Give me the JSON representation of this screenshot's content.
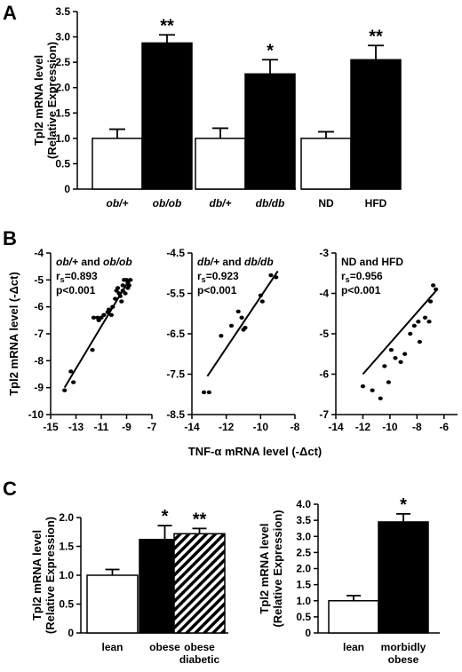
{
  "panels": {
    "A": "A",
    "B": "B",
    "C": "C"
  },
  "chart_data": [
    {
      "panel": "A",
      "type": "bar",
      "ylabel": [
        "Tpl2 mRNA level",
        "(Relative Expression)"
      ],
      "ylim": [
        0,
        3.5
      ],
      "yticks": [
        "0",
        "0.5",
        "1.0",
        "1.5",
        "2.0",
        "2.5",
        "3.0",
        "3.5"
      ],
      "categories": [
        "ob/+",
        "ob/ob",
        "db/+",
        "db/db",
        "ND",
        "HFD"
      ],
      "italic_categories": [
        true,
        true,
        true,
        true,
        false,
        false
      ],
      "values": [
        1.0,
        2.88,
        1.0,
        2.27,
        1.0,
        2.55
      ],
      "errors": [
        0.18,
        0.16,
        0.2,
        0.28,
        0.13,
        0.28
      ],
      "fills": [
        "#ffffff",
        "#000000",
        "#ffffff",
        "#000000",
        "#ffffff",
        "#000000"
      ],
      "significance": [
        "",
        "**",
        "",
        "*",
        "",
        "**"
      ]
    },
    {
      "panel": "B",
      "type": "scatter",
      "ylabel": "Tpl2 mRNA level (-Δct)",
      "xlabel": "TNF-α mRNA level (-Δct)",
      "subplots": [
        {
          "legend": "ob/+ and ob/ob",
          "legend_parts": [
            {
              "t": "ob/+",
              "i": true
            },
            {
              "t": " and ",
              "i": false
            },
            {
              "t": "ob/ob",
              "i": true
            }
          ],
          "rs": "0.893",
          "p": "p<0.001",
          "xlim": [
            -15,
            -7
          ],
          "ylim": [
            -10,
            -4
          ],
          "xticks": [
            "-15",
            "-13",
            "-11",
            "-9",
            "-7"
          ],
          "yticks": [
            "-4",
            "-5",
            "-6",
            "-7",
            "-8",
            "-9",
            "-10"
          ],
          "points": [
            [
              -13.9,
              -9.1
            ],
            [
              -13.4,
              -8.4
            ],
            [
              -13.2,
              -8.8
            ],
            [
              -11.7,
              -7.6
            ],
            [
              -11.6,
              -6.4
            ],
            [
              -11.3,
              -6.4
            ],
            [
              -11.2,
              -6.5
            ],
            [
              -11.0,
              -6.4
            ],
            [
              -10.8,
              -6.3
            ],
            [
              -10.5,
              -6.2
            ],
            [
              -10.4,
              -6.1
            ],
            [
              -10.2,
              -6.3
            ],
            [
              -10.1,
              -6.0
            ],
            [
              -9.9,
              -5.7
            ],
            [
              -9.8,
              -5.4
            ],
            [
              -9.7,
              -5.3
            ],
            [
              -9.6,
              -5.5
            ],
            [
              -9.5,
              -5.6
            ],
            [
              -9.4,
              -5.8
            ],
            [
              -9.3,
              -5.2
            ],
            [
              -9.3,
              -5.4
            ],
            [
              -9.2,
              -5.0
            ],
            [
              -9.1,
              -5.5
            ],
            [
              -9.0,
              -5.0
            ],
            [
              -8.9,
              -5.3
            ],
            [
              -8.9,
              -5.1
            ],
            [
              -8.8,
              -5.2
            ],
            [
              -8.7,
              -5.0
            ]
          ],
          "fit": [
            [
              -13.9,
              -9.0
            ],
            [
              -8.8,
              -5.0
            ]
          ]
        },
        {
          "legend": "db/+ and db/db",
          "legend_parts": [
            {
              "t": "db/+",
              "i": true
            },
            {
              "t": " and ",
              "i": false
            },
            {
              "t": "db/db",
              "i": true
            }
          ],
          "rs": "0.923",
          "p": "p<0.001",
          "xlim": [
            -14,
            -8
          ],
          "ylim": [
            -8.5,
            -4.5
          ],
          "xticks": [
            "-14",
            "-12",
            "-10",
            "-8"
          ],
          "yticks": [
            "-4.5",
            "-5.5",
            "-6.5",
            "-7.5",
            "-8.5"
          ],
          "points": [
            [
              -13.3,
              -7.95
            ],
            [
              -13.0,
              -7.95
            ],
            [
              -12.3,
              -6.55
            ],
            [
              -11.7,
              -6.3
            ],
            [
              -11.3,
              -5.95
            ],
            [
              -11.1,
              -6.1
            ],
            [
              -11.0,
              -6.4
            ],
            [
              -10.9,
              -6.35
            ],
            [
              -10.0,
              -5.55
            ],
            [
              -9.9,
              -5.7
            ],
            [
              -9.4,
              -5.05
            ],
            [
              -9.1,
              -5.1
            ]
          ],
          "fit": [
            [
              -13.1,
              -7.55
            ],
            [
              -9.0,
              -4.95
            ]
          ]
        },
        {
          "legend": "ND and HFD",
          "legend_parts": [
            {
              "t": "ND and HFD",
              "i": false
            }
          ],
          "rs": "0.956",
          "p": "p<0.001",
          "xlim": [
            -14,
            -5
          ],
          "ylim": [
            -7,
            -3
          ],
          "xticks": [
            "-14",
            "-12",
            "-10",
            "-8",
            "-6"
          ],
          "yticks": [
            "-3",
            "-4",
            "-5",
            "-6",
            "-7"
          ],
          "points": [
            [
              -12.0,
              -6.3
            ],
            [
              -11.3,
              -6.4
            ],
            [
              -10.7,
              -6.6
            ],
            [
              -10.4,
              -5.8
            ],
            [
              -10.1,
              -6.2
            ],
            [
              -9.9,
              -5.4
            ],
            [
              -9.6,
              -5.6
            ],
            [
              -9.2,
              -5.7
            ],
            [
              -8.9,
              -5.5
            ],
            [
              -8.5,
              -5.0
            ],
            [
              -8.2,
              -4.8
            ],
            [
              -7.9,
              -4.7
            ],
            [
              -7.8,
              -5.2
            ],
            [
              -7.4,
              -4.6
            ],
            [
              -7.1,
              -4.7
            ],
            [
              -7.0,
              -4.2
            ],
            [
              -6.8,
              -3.8
            ],
            [
              -6.6,
              -3.9
            ]
          ],
          "fit": [
            [
              -12.0,
              -6.0
            ],
            [
              -6.5,
              -3.9
            ]
          ]
        }
      ]
    },
    {
      "panel": "C-left",
      "type": "bar",
      "ylabel": [
        "Tpl2 mRNA level",
        "(Relative Expression)"
      ],
      "ylim": [
        0,
        2.0
      ],
      "yticks": [
        "0",
        "0.5",
        "1.0",
        "1.5",
        "2.0"
      ],
      "categories": [
        [
          "lean"
        ],
        [
          "obese"
        ],
        [
          "obese",
          "diabetic"
        ]
      ],
      "values": [
        1.0,
        1.62,
        1.72
      ],
      "errors": [
        0.1,
        0.24,
        0.09
      ],
      "fills": [
        "#ffffff",
        "#000000",
        "hatch"
      ],
      "significance": [
        "",
        "*",
        "**"
      ]
    },
    {
      "panel": "C-right",
      "type": "bar",
      "ylabel": [
        "Tpl2 mRNA level",
        "(Relative Expression)"
      ],
      "ylim": [
        0,
        4.0
      ],
      "yticks": [
        "0",
        "0.5",
        "1.0",
        "1.5",
        "2.0",
        "2.5",
        "3.0",
        "3.5",
        "4.0"
      ],
      "categories": [
        [
          "lean"
        ],
        [
          "morbidly",
          "obese"
        ]
      ],
      "values": [
        1.0,
        3.45
      ],
      "errors": [
        0.16,
        0.25
      ],
      "fills": [
        "#ffffff",
        "#000000"
      ],
      "significance": [
        "",
        "*"
      ]
    }
  ]
}
